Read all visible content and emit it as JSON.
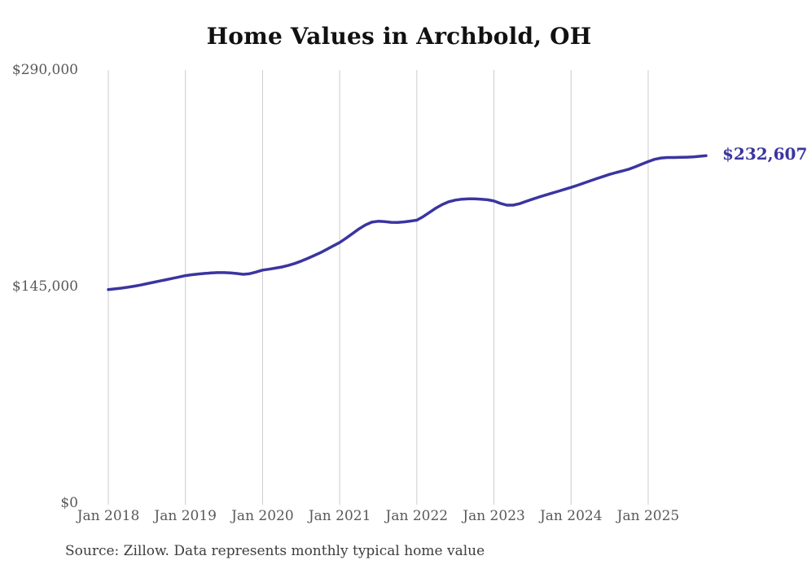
{
  "title": "Home Values in Archbold, OH",
  "source_note": "Source: Zillow. Data represents monthly typical home value",
  "end_label": "$232,607",
  "colors": {
    "line": "#3a35a0",
    "grid": "#cccccc",
    "title_text": "#111111",
    "axis_label": "#595959",
    "source_text": "#3d3d3d"
  },
  "chart_data": {
    "type": "line",
    "title": "Home Values in Archbold, OH",
    "xlabel": "",
    "ylabel": "",
    "ylim": [
      0,
      290000
    ],
    "grid": "vertical-only",
    "legend": "none",
    "x_start_month": "Jan 2018",
    "x_end_month": "Oct 2025",
    "x_cadence": "monthly",
    "x_tick_labels": [
      "Jan 2018",
      "Jan 2019",
      "Jan 2020",
      "Jan 2021",
      "Jan 2022",
      "Jan 2023",
      "Jan 2024",
      "Jan 2025"
    ],
    "y_ticks": [
      {
        "label": "$0",
        "value": 0
      },
      {
        "label": "$145,000",
        "value": 145000
      },
      {
        "label": "$290,000",
        "value": 290000
      }
    ],
    "last_value": 232607,
    "values": [
      143000,
      143400,
      143900,
      144500,
      145200,
      146000,
      146900,
      147800,
      148700,
      149600,
      150500,
      151400,
      152300,
      152900,
      153400,
      153800,
      154100,
      154300,
      154300,
      154100,
      153700,
      153200,
      153600,
      154700,
      156000,
      156600,
      157300,
      158100,
      159100,
      160400,
      162000,
      163800,
      165700,
      167700,
      169900,
      172200,
      174500,
      177400,
      180500,
      183600,
      186200,
      188100,
      188700,
      188500,
      188000,
      187900,
      188300,
      188800,
      189400,
      191800,
      194700,
      197600,
      200000,
      201800,
      202900,
      203500,
      203700,
      203700,
      203500,
      203100,
      202300,
      200700,
      199500,
      199500,
      200500,
      202000,
      203500,
      204900,
      206200,
      207500,
      208800,
      210100,
      211400,
      212800,
      214300,
      215800,
      217300,
      218700,
      220100,
      221300,
      222400,
      223600,
      225200,
      227000,
      228700,
      230200,
      231100,
      231400,
      231400,
      231500,
      231600,
      231800,
      232200,
      232607
    ]
  }
}
